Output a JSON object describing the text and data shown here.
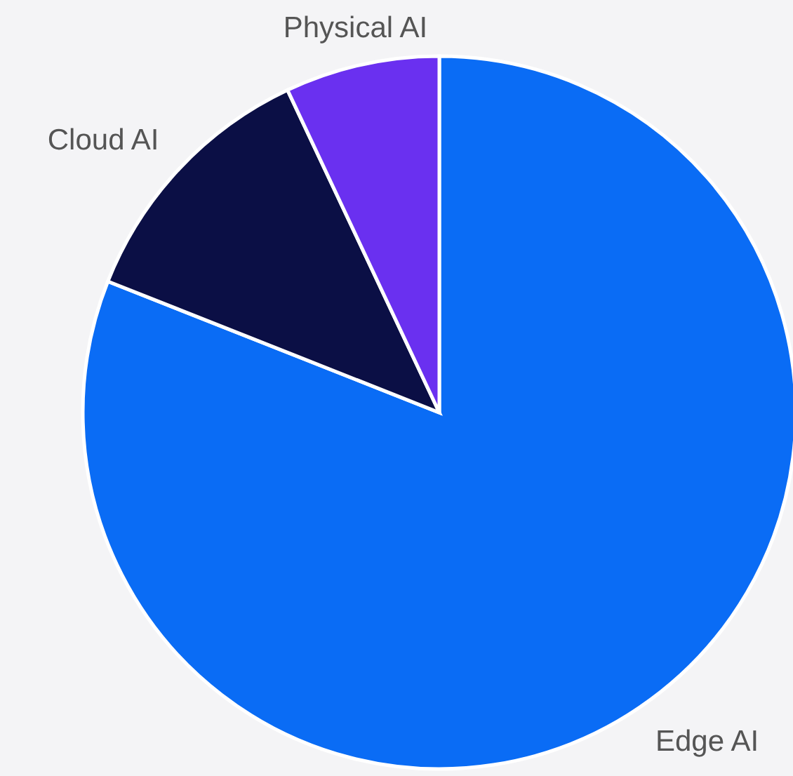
{
  "chart_data": {
    "type": "pie",
    "categories": [
      "Edge AI",
      "Cloud AI",
      "Physical AI"
    ],
    "values": [
      81,
      12,
      7
    ],
    "colors": [
      "#0a6cf5",
      "#0b0f45",
      "#6a30f0"
    ]
  }
}
